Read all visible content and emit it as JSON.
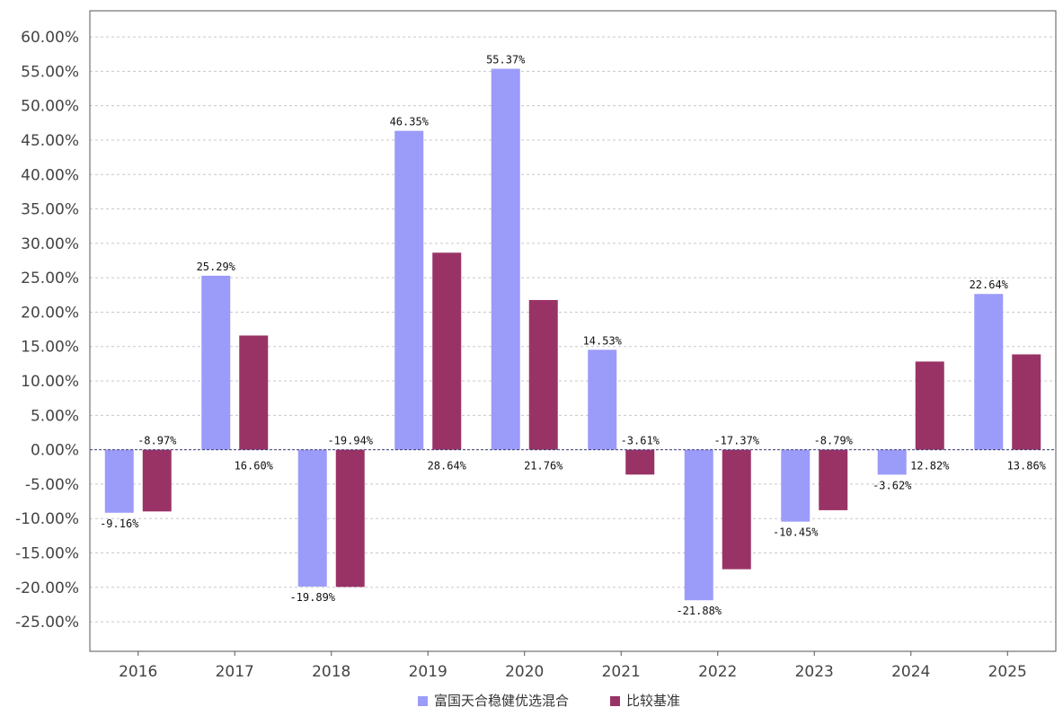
{
  "chart_data": {
    "type": "bar",
    "categories": [
      "2016",
      "2017",
      "2018",
      "2019",
      "2020",
      "2021",
      "2022",
      "2023",
      "2024",
      "2025"
    ],
    "series": [
      {
        "name": "富国天合稳健优选混合",
        "color": "#9b9bfa",
        "values": [
          -9.16,
          25.29,
          -19.89,
          46.35,
          55.37,
          14.53,
          -21.88,
          -10.45,
          -3.62,
          22.64
        ],
        "labels": [
          "-9.16%",
          "25.29%",
          "-19.89%",
          "46.35%",
          "55.37%",
          "14.53%",
          "-21.88%",
          "-10.45%",
          "-3.62%",
          "22.64%"
        ]
      },
      {
        "name": "比较基准",
        "color": "#993366",
        "values": [
          -8.97,
          16.6,
          -19.94,
          28.64,
          21.76,
          -3.61,
          -17.37,
          -8.79,
          12.82,
          13.86
        ],
        "labels": [
          "-8.97%",
          "16.60%",
          "-19.94%",
          "28.64%",
          "21.76%",
          "-3.61%",
          "-17.37%",
          "-8.79%",
          "12.82%",
          "13.86%"
        ]
      }
    ],
    "yticks": [
      {
        "value": 60,
        "label": "60.00%"
      },
      {
        "value": 55,
        "label": "55.00%"
      },
      {
        "value": 50,
        "label": "50.00%"
      },
      {
        "value": 45,
        "label": "45.00%"
      },
      {
        "value": 40,
        "label": "40.00%"
      },
      {
        "value": 35,
        "label": "35.00%"
      },
      {
        "value": 30,
        "label": "30.00%"
      },
      {
        "value": 25,
        "label": "25.00%"
      },
      {
        "value": 20,
        "label": "20.00%"
      },
      {
        "value": 15,
        "label": "15.00%"
      },
      {
        "value": 10,
        "label": "10.00%"
      },
      {
        "value": 5,
        "label": "5.00%"
      },
      {
        "value": 0,
        "label": "0.00%"
      },
      {
        "value": -5,
        "label": "-5.00%"
      },
      {
        "value": -10,
        "label": "-10.00%"
      },
      {
        "value": -15,
        "label": "-15.00%"
      },
      {
        "value": -20,
        "label": "-20.00%"
      },
      {
        "value": -25,
        "label": "-25.00%"
      }
    ],
    "ylim": [
      -29.3,
      63.8
    ],
    "grid": true,
    "legend_position": "bottom-center",
    "title": "",
    "xlabel": "",
    "ylabel": ""
  }
}
